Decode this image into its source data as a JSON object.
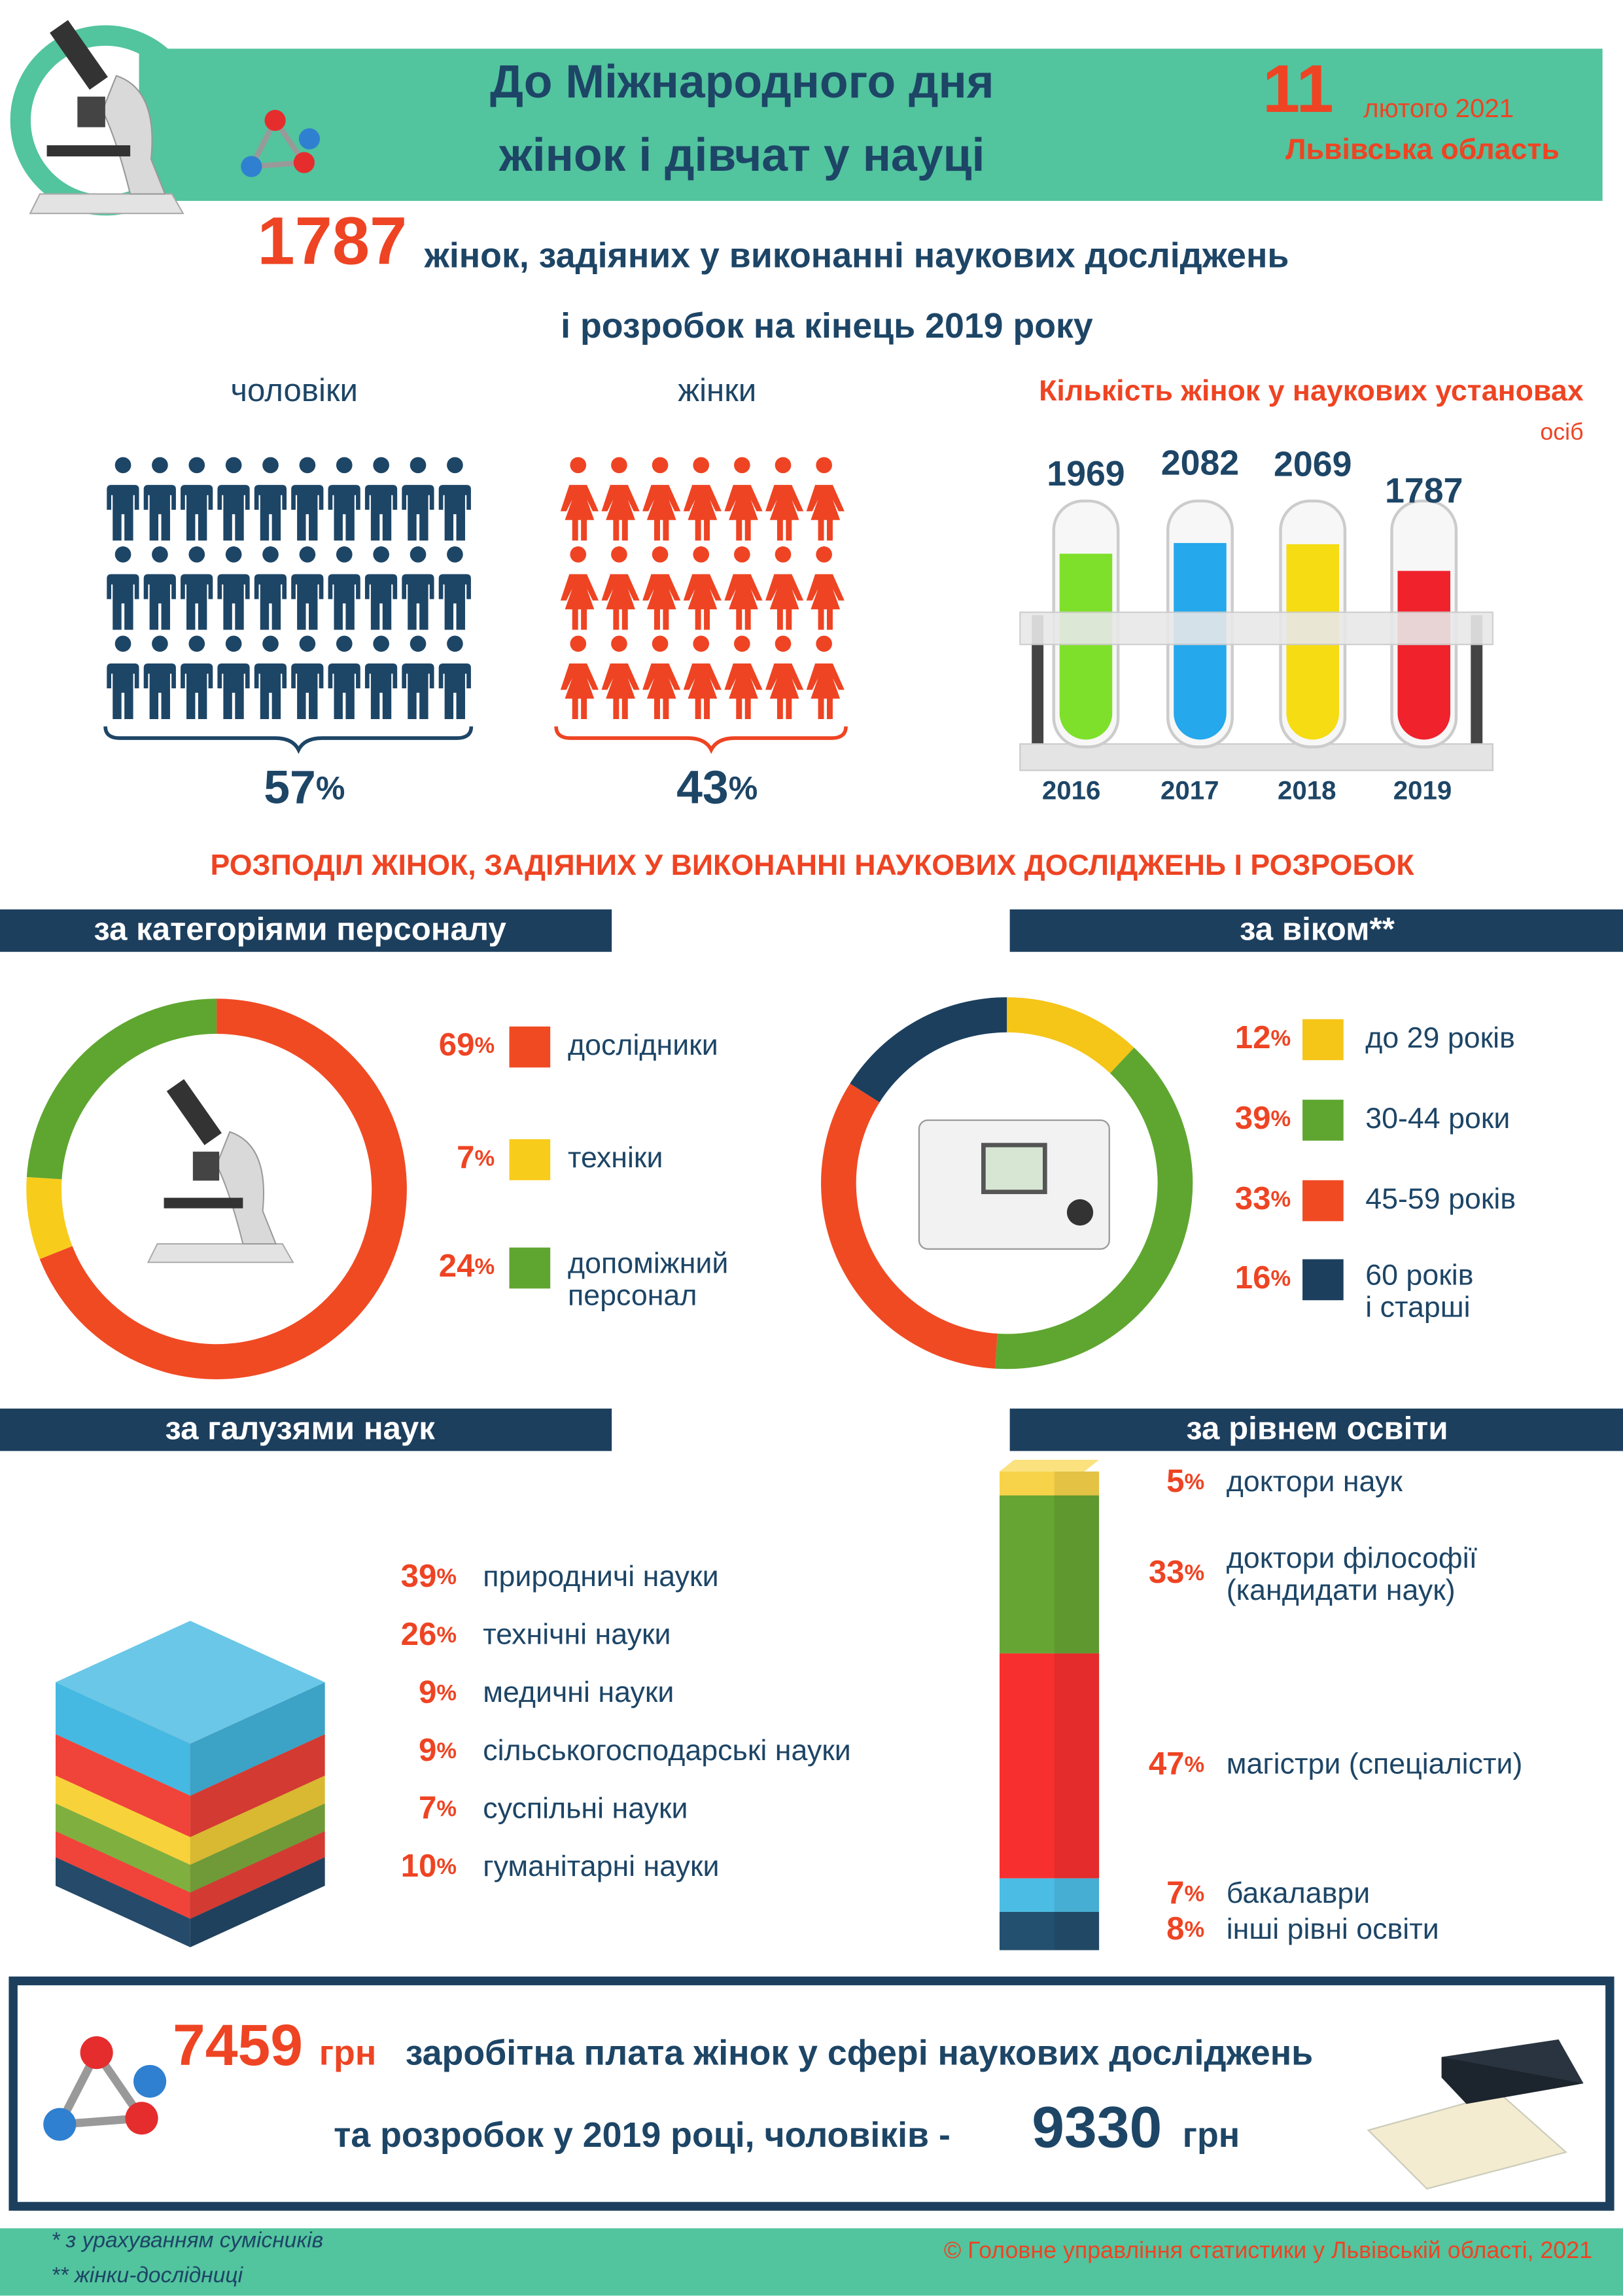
{
  "header": {
    "title_lines": [
      "До Міжнародного дня",
      "жінок і дівчат у науці"
    ],
    "day": "11",
    "month_year": "лютого 2021",
    "region": "Львівська область"
  },
  "headline": {
    "number": "1787",
    "text_line1": "жінок, задіяних у виконанні наукових досліджень",
    "text_line2": "і розробок на кінець 2019 року"
  },
  "gender": {
    "men_label": "чоловіки",
    "women_label": "жінки",
    "men_share": "57%",
    "women_share": "43%"
  },
  "section_title": "РОЗПОДІЛ ЖІНОК, ЗАДІЯНИХ У ВИКОНАННІ НАУКОВИХ ДОСЛІДЖЕНЬ І РОЗРОБОК",
  "chart_data": [
    {
      "type": "tubes",
      "title": "Кількість жінок у наукових установах",
      "unit": "осіб",
      "categories": [
        "2016",
        "2017",
        "2018",
        "2019"
      ],
      "values": [
        1969,
        2082,
        2069,
        1787
      ],
      "colors": [
        "#7ee02a",
        "#25a8ec",
        "#f6dc12",
        "#f0222c"
      ]
    },
    {
      "type": "donut",
      "title": "за категоріями персоналу",
      "categories": [
        "дослідники",
        "техніки",
        "допоміжний\nперсонал"
      ],
      "values": [
        69,
        7,
        24
      ],
      "value_labels": [
        "69%",
        "7%",
        "24%"
      ],
      "colors": [
        "#f04a23",
        "#f8cc1b",
        "#5fa630"
      ]
    },
    {
      "type": "donut",
      "title": "за віком**",
      "categories": [
        "до 29 років",
        "30-44 роки",
        "45-59 років",
        "60 років\nі старші"
      ],
      "values": [
        12,
        39,
        33,
        16
      ],
      "value_labels": [
        "12%",
        "39%",
        "33%",
        "16%"
      ],
      "colors": [
        "#f5c518",
        "#5fa630",
        "#f04a23",
        "#1c3f5e"
      ]
    },
    {
      "type": "stack3d",
      "title": "за галузями наук",
      "categories": [
        "природничі науки",
        "технічні науки",
        "медичні науки",
        "сільськогосподарські науки",
        "суспільні науки",
        "гуманітарні науки"
      ],
      "values": [
        39,
        26,
        9,
        9,
        7,
        10
      ],
      "value_labels": [
        "39%",
        "26%",
        "9%",
        "9%",
        "7%",
        "10%"
      ],
      "colors": [
        "#45b9e2",
        "#f0433a",
        "#f8d23a",
        "#7fb03f",
        "#f0433a",
        "#254a6a"
      ]
    },
    {
      "type": "column",
      "title": "за рівнем освіти",
      "categories": [
        "доктори наук",
        "доктори філософії\n(кандидати наук)",
        "магістри (спеціалісти)",
        "бакалаври",
        "інші рівні освіти"
      ],
      "values": [
        5,
        33,
        47,
        7,
        8
      ],
      "value_labels": [
        "5%",
        "33%",
        "47%",
        "7%",
        "8%"
      ],
      "colors": [
        "#f7d34a",
        "#66a533",
        "#f7302f",
        "#4bbde4",
        "#24506f"
      ]
    }
  ],
  "salary": {
    "women": "7459",
    "currency": "грн",
    "line1": "заробітна плата жінок у сфері наукових досліджень",
    "line2": "та розробок у 2019 році, чоловіків -",
    "men": "9330"
  },
  "footnotes": [
    "* з урахуванням сумісників",
    "** жінки-дослідниці"
  ],
  "copyright": "© Головне управління статистики у Львівській області, 2021"
}
